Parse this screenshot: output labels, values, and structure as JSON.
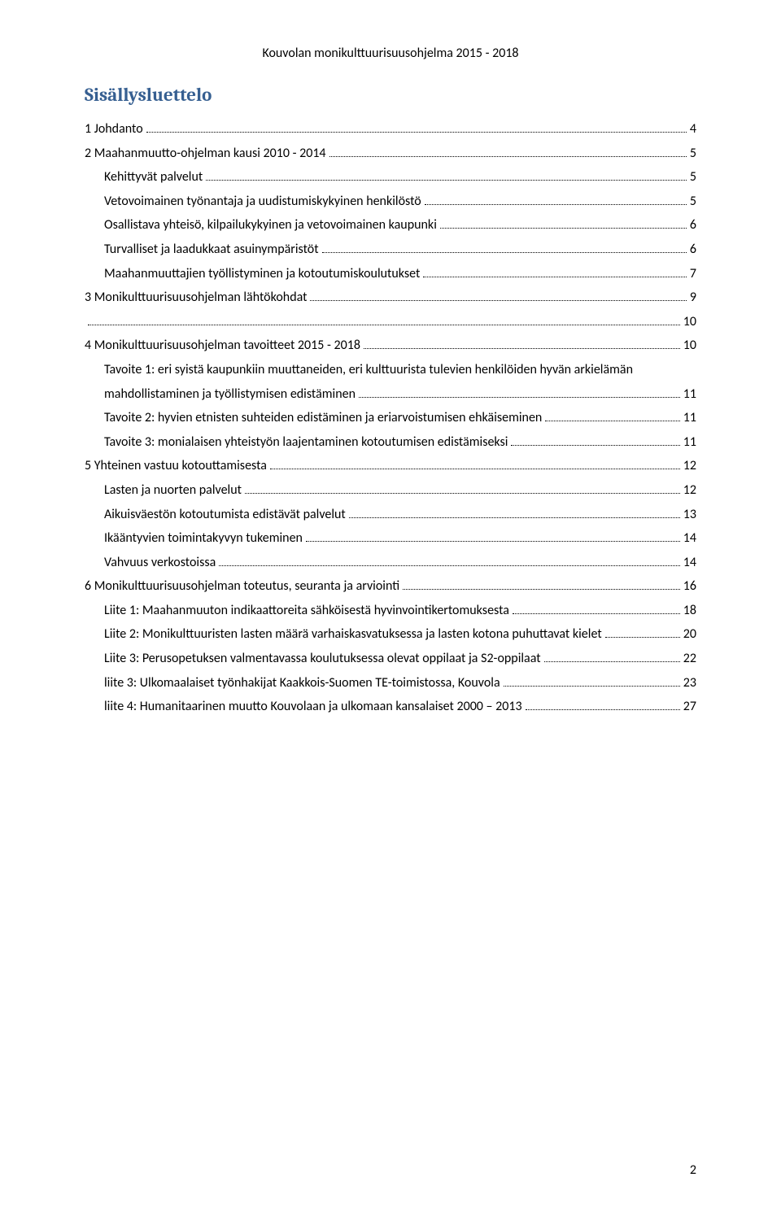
{
  "header": "Kouvolan monikulttuurisuusohjelma 2015 - 2018",
  "title": "Sisällysluettelo",
  "colors": {
    "title": "#365f91",
    "text": "#000000",
    "bg": "#ffffff"
  },
  "fonts": {
    "title_family": "Cambria",
    "body_family": "Calibri",
    "title_size_pt": 17,
    "body_size_pt": 12
  },
  "page_number": "2",
  "toc": [
    {
      "label": "1 Johdanto",
      "page": "4",
      "level": 0
    },
    {
      "label": "2 Maahanmuutto-ohjelman kausi 2010 - 2014",
      "page": "5",
      "level": 0
    },
    {
      "label": "Kehittyvät palvelut",
      "page": "5",
      "level": 1
    },
    {
      "label": "Vetovoimainen työnantaja ja uudistumiskykyinen henkilöstö",
      "page": "5",
      "level": 1
    },
    {
      "label": "Osallistava yhteisö, kilpailukykyinen ja vetovoimainen kaupunki",
      "page": "6",
      "level": 1
    },
    {
      "label": "Turvalliset ja laadukkaat asuinympäristöt",
      "page": "6",
      "level": 1
    },
    {
      "label": "Maahanmuuttajien työllistyminen ja kotoutumiskoulutukset",
      "page": "7",
      "level": 1
    },
    {
      "label": "3 Monikulttuurisuusohjelman lähtökohdat",
      "page": "9",
      "level": 0
    },
    {
      "label": "",
      "page": "10",
      "level": 0
    },
    {
      "label": "4 Monikulttuurisuusohjelman tavoitteet 2015 - 2018",
      "page": "10",
      "level": 0
    },
    {
      "label": "Tavoite 1: eri syistä kaupunkiin muuttaneiden, eri kulttuurista tulevien henkilöiden hyvän arkielämän mahdollistaminen ja työllistymisen edistäminen",
      "page": "11",
      "level": 1,
      "wrap": true
    },
    {
      "label": "Tavoite 2: hyvien etnisten suhteiden edistäminen ja eriarvoistumisen ehkäiseminen",
      "page": "11",
      "level": 1
    },
    {
      "label": "Tavoite 3: monialaisen yhteistyön laajentaminen kotoutumisen edistämiseksi",
      "page": "11",
      "level": 1
    },
    {
      "label": "5 Yhteinen vastuu kotouttamisesta",
      "page": "12",
      "level": 0
    },
    {
      "label": "Lasten ja nuorten palvelut",
      "page": "12",
      "level": 1
    },
    {
      "label": "Aikuisväestön kotoutumista edistävät palvelut",
      "page": "13",
      "level": 1
    },
    {
      "label": "Ikääntyvien toimintakyvyn tukeminen",
      "page": "14",
      "level": 1
    },
    {
      "label": "Vahvuus verkostoissa",
      "page": "14",
      "level": 1
    },
    {
      "label": "6 Monikulttuurisuusohjelman toteutus, seuranta ja arviointi",
      "page": "16",
      "level": 0
    },
    {
      "label": "Liite 1: Maahanmuuton indikaattoreita sähköisestä hyvinvointikertomuksesta",
      "page": "18",
      "level": 1
    },
    {
      "label": "Liite 2: Monikulttuuristen lasten määrä varhaiskasvatuksessa ja lasten kotona puhuttavat kielet",
      "page": "20",
      "level": 1
    },
    {
      "label": "Liite 3: Perusopetuksen valmentavassa koulutuksessa olevat oppilaat ja S2-oppilaat",
      "page": "22",
      "level": 1
    },
    {
      "label": "liite 3: Ulkomaalaiset työnhakijat Kaakkois-Suomen TE-toimistossa, Kouvola",
      "page": "23",
      "level": 1
    },
    {
      "label": "liite 4: Humanitaarinen muutto Kouvolaan ja ulkomaan kansalaiset 2000 – 2013",
      "page": "27",
      "level": 1
    }
  ]
}
